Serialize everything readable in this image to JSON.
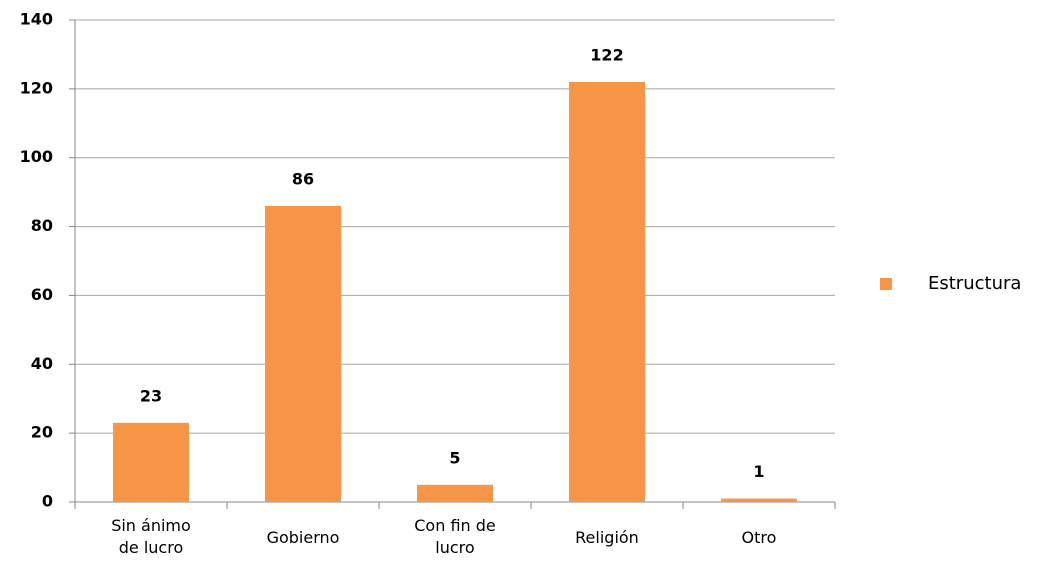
{
  "chart_data": {
    "type": "bar",
    "categories": [
      "Sin ánimo de lucro",
      "Gobierno",
      "Con fin de lucro",
      "Religión",
      "Otro"
    ],
    "series": [
      {
        "name": "Estructura",
        "color": "#f79646",
        "values": [
          23,
          86,
          5,
          122,
          1
        ]
      }
    ],
    "ylim": [
      0,
      140
    ],
    "yticks": [
      0,
      20,
      40,
      60,
      80,
      100,
      120,
      140
    ],
    "grid": true,
    "legend": "right"
  }
}
